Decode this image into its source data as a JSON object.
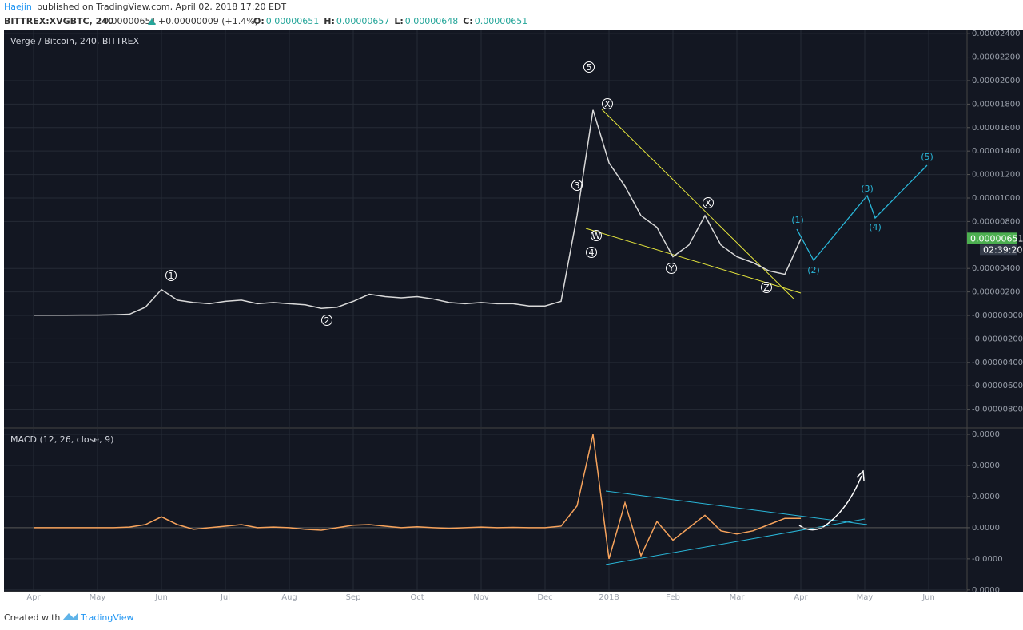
{
  "header": {
    "author": "Haejin",
    "published": "published on TradingView.com, April 02, 2018 17:20 EDT",
    "symbol": "BITTREX:XVGBTC, 240",
    "last": "0.00000651",
    "change": "+0.00000009 (+1.4%)",
    "ohlc": [
      {
        "label": "O:",
        "value": "0.00000651"
      },
      {
        "label": "H:",
        "value": "0.00000657"
      },
      {
        "label": "L:",
        "value": "0.00000648"
      },
      {
        "label": "C:",
        "value": "0.00000651"
      }
    ]
  },
  "footer": {
    "created": "Created with",
    "brand": "TradingView"
  },
  "chart_data": [
    {
      "type": "line",
      "title": "Verge / Bitcoin, 240, BITTREX",
      "color": "#d9d9d9",
      "grid": true,
      "categories": [
        "Apr",
        null,
        null,
        null,
        "May",
        null,
        null,
        null,
        "Jun",
        null,
        null,
        null,
        "Jul",
        null,
        null,
        null,
        "Aug",
        null,
        null,
        null,
        "Sep",
        null,
        null,
        null,
        "Oct",
        null,
        null,
        null,
        "Nov",
        null,
        null,
        null,
        "Dec",
        null,
        null,
        null,
        "2018",
        null,
        null,
        null,
        "Feb",
        null,
        null,
        null,
        "Mar",
        null,
        null,
        null,
        "Apr",
        null,
        null,
        null,
        "May",
        null,
        null,
        null,
        "Jun",
        null
      ],
      "values": [
        2e-08,
        2e-08,
        2e-08,
        3e-08,
        3e-08,
        5e-08,
        1e-07,
        7e-07,
        2.2e-06,
        1.3e-06,
        1.1e-06,
        1e-06,
        1.2e-06,
        1.3e-06,
        1e-06,
        1.1e-06,
        1e-06,
        9e-07,
        6e-07,
        7e-07,
        1.2e-06,
        1.8e-06,
        1.6e-06,
        1.5e-06,
        1.6e-06,
        1.4e-06,
        1.1e-06,
        1e-06,
        1.1e-06,
        1e-06,
        1e-06,
        8e-07,
        8e-07,
        1.2e-06,
        8.5e-06,
        1.75e-05,
        1.3e-05,
        1.1e-05,
        8.5e-06,
        7.5e-06,
        5e-06,
        6e-06,
        8.5e-06,
        6e-06,
        5e-06,
        4.5e-06,
        3.8e-06,
        3.5e-06,
        6.51e-06,
        null,
        null,
        null,
        null,
        null,
        null,
        null,
        null,
        null
      ],
      "ylim": [
        -9.52e-06,
        2.435e-05
      ],
      "yticks": [
        {
          "value": 2.4e-05,
          "label": "0.00002400"
        },
        {
          "value": 2.2e-05,
          "label": "0.00002200"
        },
        {
          "value": 2e-05,
          "label": "0.00002000"
        },
        {
          "value": 1.8e-05,
          "label": "0.00001800"
        },
        {
          "value": 1.6e-05,
          "label": "0.00001600"
        },
        {
          "value": 1.4e-05,
          "label": "0.00001400"
        },
        {
          "value": 1.2e-05,
          "label": "0.00001200"
        },
        {
          "value": 1e-05,
          "label": "0.00001000"
        },
        {
          "value": 8e-06,
          "label": "0.00000800"
        },
        {
          "value": 4e-06,
          "label": "0.00000400"
        },
        {
          "value": 2e-06,
          "label": "0.00000200"
        },
        {
          "value": 0,
          "label": "-0.00000000"
        },
        {
          "value": -2e-06,
          "label": "-0.00000200"
        },
        {
          "value": -4e-06,
          "label": "-0.00000400"
        },
        {
          "value": -6e-06,
          "label": "-0.00000600"
        },
        {
          "value": -8e-06,
          "label": "-0.00000800"
        }
      ],
      "last_label": "0.00000651",
      "countdown": "02:39:20",
      "annotations": [
        "1",
        "2",
        "3",
        "4",
        "5",
        "W",
        "X",
        "Y",
        "X",
        "Z",
        "(1)",
        "(2)",
        "(3)",
        "(4)",
        "(5)"
      ]
    },
    {
      "type": "line",
      "title": "MACD (12, 26, close, 9)",
      "color": "#f7a35c",
      "grid": true,
      "values": [
        0,
        0,
        0,
        0,
        0,
        0,
        2e-08,
        1e-07,
        3.5e-07,
        1e-07,
        -5e-08,
        0,
        5e-08,
        1e-07,
        0,
        2e-08,
        0,
        -5e-08,
        -8e-08,
        0,
        8e-08,
        1e-07,
        5e-08,
        0,
        3e-08,
        0,
        -2e-08,
        0,
        2e-08,
        0,
        1e-08,
        0,
        0,
        5e-08,
        7e-07,
        3e-06,
        -1e-06,
        8e-07,
        -9e-07,
        2e-07,
        -4e-07,
        0,
        4e-07,
        -1e-07,
        -2e-07,
        -1e-07,
        1e-07,
        3e-07,
        3e-07,
        null,
        null,
        null,
        null,
        null,
        null,
        null,
        null,
        null
      ],
      "ylim": [
        -2.03e-06,
        3.18e-06
      ],
      "yticks": [
        {
          "value": 3e-06,
          "label": "0.0000"
        },
        {
          "value": 2e-06,
          "label": "0.0000"
        },
        {
          "value": 1e-06,
          "label": "0.0000"
        },
        {
          "value": 0,
          "label": "0.0000"
        },
        {
          "value": -1e-06,
          "label": "-0.0000"
        },
        {
          "value": -2e-06,
          "label": "0.0000"
        }
      ]
    }
  ]
}
